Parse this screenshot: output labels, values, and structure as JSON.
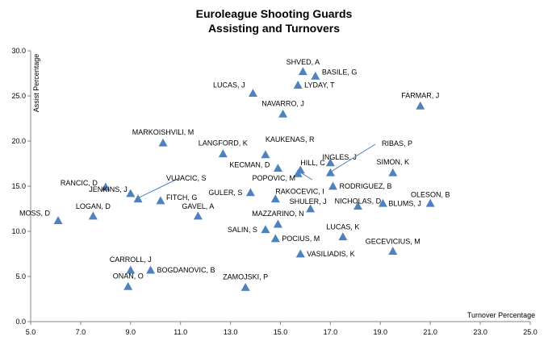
{
  "chart_data": {
    "type": "scatter",
    "title": "Euroleague Shooting Guards",
    "subtitle": "Assisting and Turnovers",
    "xlabel": "Turnover Percentage",
    "ylabel": "Assist Percentage",
    "xlim": [
      5.0,
      25.0
    ],
    "ylim": [
      0.0,
      30.0
    ],
    "xticks": [
      "5.0",
      "7.0",
      "9.0",
      "11.0",
      "13.0",
      "15.0",
      "17.0",
      "19.0",
      "21.0",
      "23.0",
      "25.0"
    ],
    "yticks": [
      "0.0",
      "5.0",
      "10.0",
      "15.0",
      "20.0",
      "25.0",
      "30.0"
    ],
    "grid": false,
    "marker_color": "#4F81BD",
    "points": [
      {
        "label": "SHVED, A",
        "x": 15.9,
        "y": 27.7
      },
      {
        "label": "BASILE, G",
        "x": 16.4,
        "y": 27.2
      },
      {
        "label": "LYDAY, T",
        "x": 15.7,
        "y": 26.2
      },
      {
        "label": "LUCAS, J",
        "x": 13.9,
        "y": 25.3
      },
      {
        "label": "FARMAR, J",
        "x": 20.6,
        "y": 23.9
      },
      {
        "label": "NAVARRO, J",
        "x": 15.1,
        "y": 23.0
      },
      {
        "label": "MARKOISHVILI, M",
        "x": 10.3,
        "y": 19.8
      },
      {
        "label": "LANGFORD, K",
        "x": 12.7,
        "y": 18.6
      },
      {
        "label": "KAUKENAS, R",
        "x": 14.4,
        "y": 18.5
      },
      {
        "label": "INGLES, J",
        "x": 17.0,
        "y": 17.6
      },
      {
        "label": "RIBAS, P",
        "x": 17.0,
        "y": 16.5
      },
      {
        "label": "KECMAN, D",
        "x": 14.9,
        "y": 17.0
      },
      {
        "label": "HILL, C",
        "x": 15.8,
        "y": 16.8
      },
      {
        "label": "POPOVIC, M",
        "x": 15.7,
        "y": 16.4
      },
      {
        "label": "SIMON, K",
        "x": 19.5,
        "y": 16.5
      },
      {
        "label": "RANCIC, D",
        "x": 8.0,
        "y": 14.9
      },
      {
        "label": "JENKINS, J",
        "x": 9.0,
        "y": 14.2
      },
      {
        "label": "VUJACIC, S",
        "x": 9.3,
        "y": 13.6
      },
      {
        "label": "RODRIGUEZ, B",
        "x": 17.1,
        "y": 15.0
      },
      {
        "label": "GULER, S",
        "x": 13.8,
        "y": 14.3
      },
      {
        "label": "RAKOCEVIC, I",
        "x": 14.8,
        "y": 13.6
      },
      {
        "label": "FITCH, G",
        "x": 10.2,
        "y": 13.4
      },
      {
        "label": "SHULER, J",
        "x": 16.2,
        "y": 12.5
      },
      {
        "label": "NICHOLAS, D",
        "x": 18.1,
        "y": 12.8
      },
      {
        "label": "BLUMS, J",
        "x": 19.1,
        "y": 13.1
      },
      {
        "label": "OLESON, B",
        "x": 21.0,
        "y": 13.1
      },
      {
        "label": "MOSS, D",
        "x": 6.1,
        "y": 11.2
      },
      {
        "label": "LOGAN, D",
        "x": 7.5,
        "y": 11.7
      },
      {
        "label": "GAVEL, A",
        "x": 11.7,
        "y": 11.7
      },
      {
        "label": "MAZZARINO, N",
        "x": 14.9,
        "y": 10.8
      },
      {
        "label": "SALIN, S",
        "x": 14.4,
        "y": 10.2
      },
      {
        "label": "LUCAS, K",
        "x": 17.5,
        "y": 9.4
      },
      {
        "label": "POCIUS, M",
        "x": 14.8,
        "y": 9.2
      },
      {
        "label": "GECEVICIUS, M",
        "x": 19.5,
        "y": 7.8
      },
      {
        "label": "VASILIADIS, K",
        "x": 15.8,
        "y": 7.5
      },
      {
        "label": "CARROLL, J",
        "x": 9.0,
        "y": 5.7
      },
      {
        "label": "BOGDANOVIC, B",
        "x": 9.8,
        "y": 5.7
      },
      {
        "label": "ONAN, O",
        "x": 8.9,
        "y": 3.9
      },
      {
        "label": "ZAMOJSKI, P",
        "x": 13.6,
        "y": 3.8
      }
    ]
  }
}
